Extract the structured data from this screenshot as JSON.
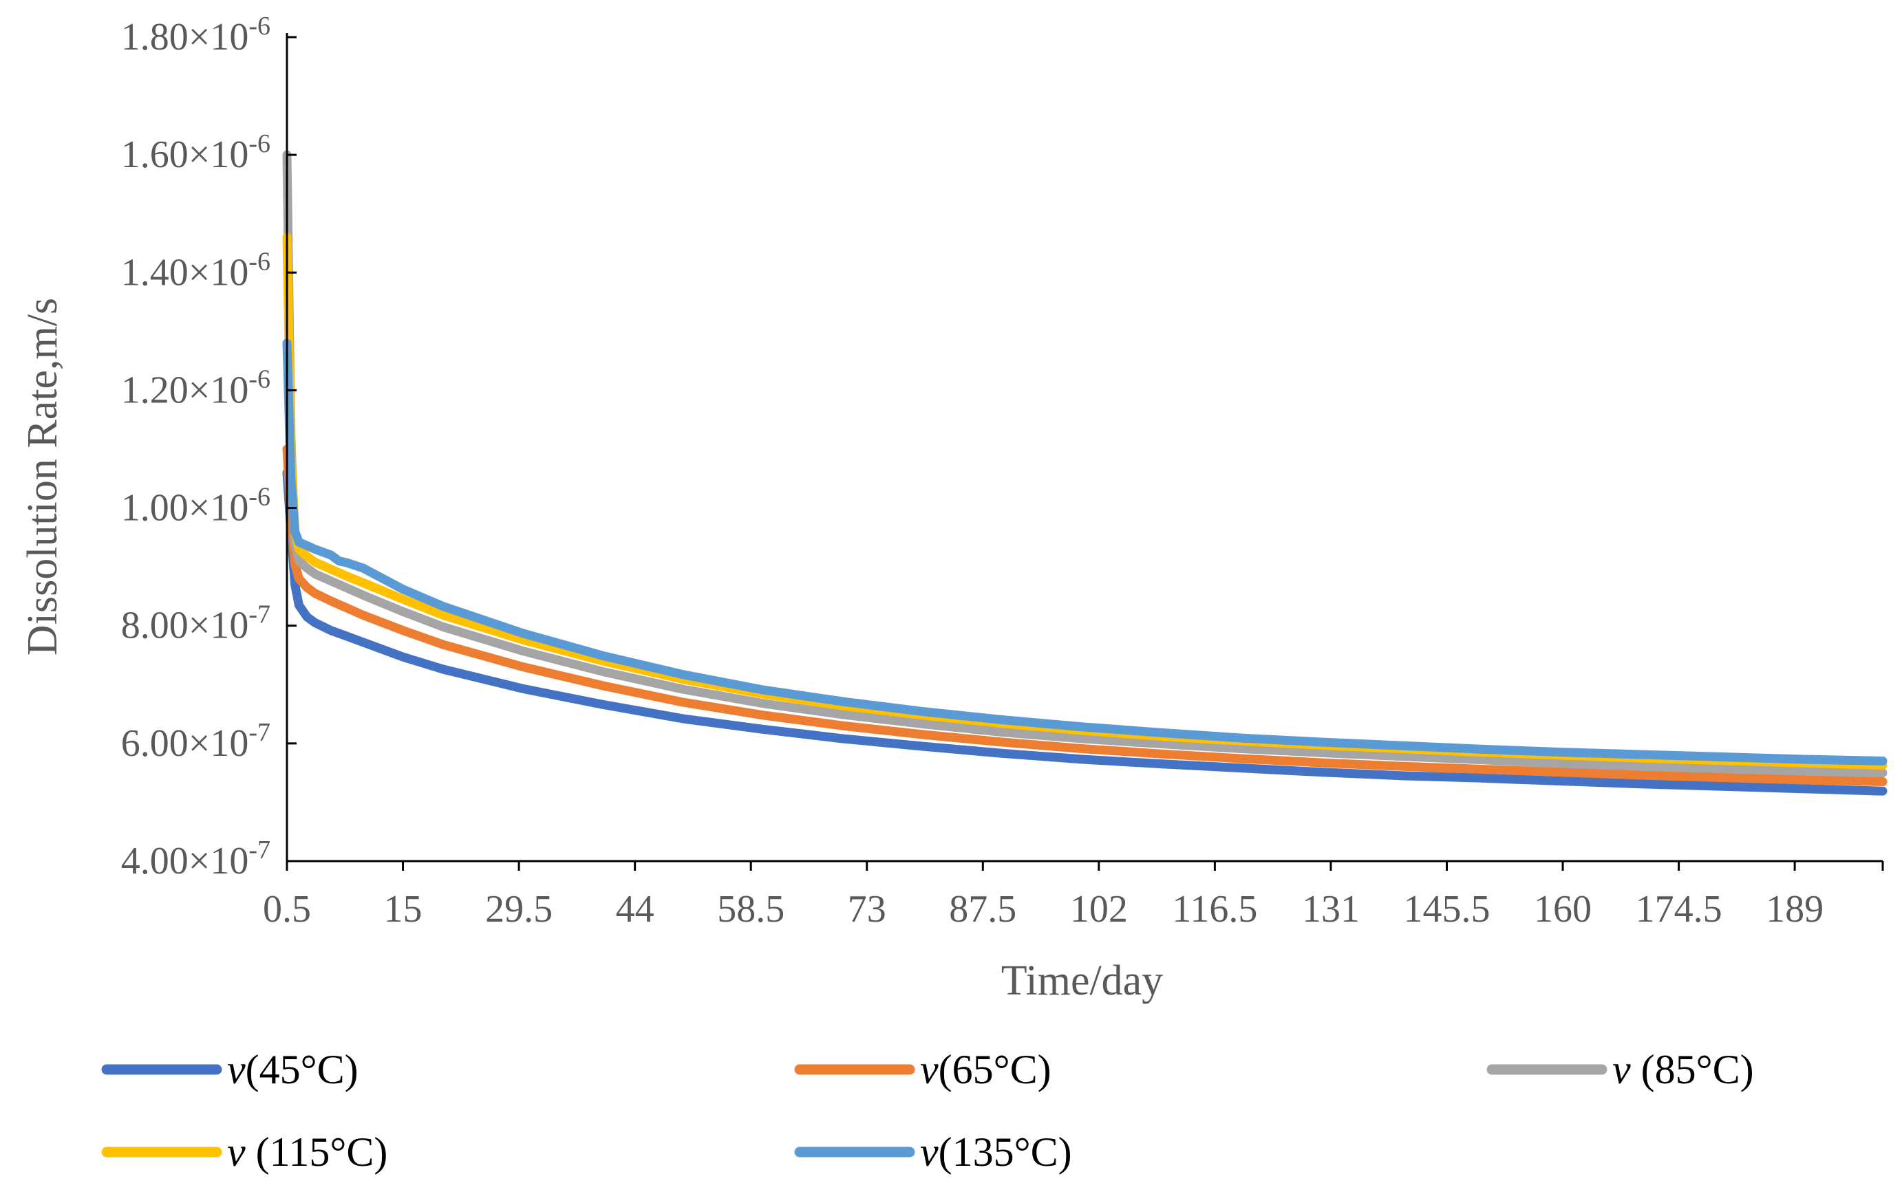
{
  "chart_data": {
    "type": "line",
    "title": "",
    "xlabel": "Time/day",
    "ylabel": "Dissolution Rate,m/s",
    "x_ticks": [
      "0.5",
      "15",
      "29.5",
      "44",
      "58.5",
      "73",
      "87.5",
      "102",
      "116.5",
      "131",
      "145.5",
      "160",
      "174.5",
      "189"
    ],
    "x_tick_values": [
      0.5,
      15,
      29.5,
      44,
      58.5,
      73,
      87.5,
      102,
      116.5,
      131,
      145.5,
      160,
      174.5,
      189
    ],
    "xlim": [
      0.5,
      200
    ],
    "y_ticks": [
      {
        "mantissa": "4.00",
        "exp": "-7",
        "value": 4e-07
      },
      {
        "mantissa": "6.00",
        "exp": "-7",
        "value": 6e-07
      },
      {
        "mantissa": "8.00",
        "exp": "-7",
        "value": 8e-07
      },
      {
        "mantissa": "1.00",
        "exp": "-6",
        "value": 1e-06
      },
      {
        "mantissa": "1.20",
        "exp": "-6",
        "value": 1.2e-06
      },
      {
        "mantissa": "1.40",
        "exp": "-6",
        "value": 1.4e-06
      },
      {
        "mantissa": "1.60",
        "exp": "-6",
        "value": 1.6e-06
      },
      {
        "mantissa": "1.80",
        "exp": "-6",
        "value": 1.8e-06
      }
    ],
    "y_tick_sep": "×10",
    "ylim": [
      4e-07,
      1.8e-06
    ],
    "grid": false,
    "legend_position": "bottom",
    "series": [
      {
        "name": "v(45°C)",
        "label_main": "v",
        "label_rest": "(45°C)",
        "color": "#4472C4",
        "x": [
          0.5,
          1,
          1.5,
          2,
          3,
          4,
          6,
          8,
          10,
          15,
          20,
          30,
          40,
          50,
          60,
          70,
          80,
          90,
          100,
          110,
          120,
          130,
          140,
          150,
          160,
          170,
          180,
          190,
          200
        ],
        "y": [
          1.06e-06,
          9.6e-07,
          8.7e-07,
          8.35e-07,
          8.15e-07,
          8.05e-07,
          7.92e-07,
          7.82e-07,
          7.72e-07,
          7.47e-07,
          7.26e-07,
          6.93e-07,
          6.66e-07,
          6.42e-07,
          6.24e-07,
          6.08e-07,
          5.95e-07,
          5.83e-07,
          5.73e-07,
          5.65e-07,
          5.58e-07,
          5.51e-07,
          5.45e-07,
          5.41e-07,
          5.36e-07,
          5.31e-07,
          5.27e-07,
          5.23e-07,
          5.19e-07
        ]
      },
      {
        "name": "v(65°C)",
        "label_main": "v",
        "label_rest": "(65°C)",
        "color": "#ED7D31",
        "x": [
          0.5,
          1,
          1.5,
          2,
          3,
          4,
          6,
          8,
          10,
          15,
          20,
          30,
          40,
          50,
          60,
          70,
          80,
          90,
          100,
          110,
          120,
          130,
          140,
          150,
          160,
          170,
          180,
          190,
          200
        ],
        "y": [
          1.1e-06,
          9.8e-07,
          9.05e-07,
          8.8e-07,
          8.65e-07,
          8.55e-07,
          8.42e-07,
          8.3e-07,
          8.18e-07,
          7.92e-07,
          7.68e-07,
          7.3e-07,
          6.98e-07,
          6.7e-07,
          6.48e-07,
          6.3e-07,
          6.15e-07,
          6.02e-07,
          5.91e-07,
          5.82e-07,
          5.74e-07,
          5.67e-07,
          5.61e-07,
          5.56e-07,
          5.51e-07,
          5.46e-07,
          5.42e-07,
          5.38e-07,
          5.35e-07
        ]
      },
      {
        "name": "v (85°C)",
        "label_main": "v",
        "label_rest": " (85°C)",
        "color": "#A5A5A5",
        "x": [
          0.5,
          1,
          1.5,
          2,
          3,
          4,
          6,
          8,
          10,
          15,
          20,
          30,
          40,
          50,
          60,
          70,
          80,
          90,
          100,
          110,
          120,
          130,
          140,
          150,
          160,
          170,
          180,
          190,
          200
        ],
        "y": [
          1.6e-06,
          1.12e-06,
          9.4e-07,
          9.1e-07,
          8.98e-07,
          8.88e-07,
          8.76e-07,
          8.64e-07,
          8.52e-07,
          8.24e-07,
          7.98e-07,
          7.57e-07,
          7.22e-07,
          6.92e-07,
          6.68e-07,
          6.49e-07,
          6.33e-07,
          6.19e-07,
          6.08e-07,
          5.99e-07,
          5.91e-07,
          5.84e-07,
          5.78e-07,
          5.72e-07,
          5.66e-07,
          5.61e-07,
          5.57e-07,
          5.53e-07,
          5.5e-07
        ]
      },
      {
        "name": "v (115°C)",
        "label_main": "v",
        "label_rest": " (115°C)",
        "color": "#FFC000",
        "x": [
          0.5,
          1,
          1.5,
          2,
          3,
          4,
          6,
          8,
          10,
          15,
          20,
          30,
          40,
          50,
          60,
          70,
          80,
          90,
          100,
          110,
          120,
          130,
          140,
          150,
          160,
          170,
          180,
          190,
          200
        ],
        "y": [
          1.46e-06,
          1.1e-06,
          9.6e-07,
          9.3e-07,
          9.18e-07,
          9.08e-07,
          8.96e-07,
          8.84e-07,
          8.73e-07,
          8.45e-07,
          8.18e-07,
          7.76e-07,
          7.4e-07,
          7.09e-07,
          6.84e-07,
          6.64e-07,
          6.48e-07,
          6.34e-07,
          6.22e-07,
          6.12e-07,
          6.04e-07,
          5.97e-07,
          5.91e-07,
          5.85e-07,
          5.8e-07,
          5.75e-07,
          5.71e-07,
          5.67e-07,
          5.63e-07
        ]
      },
      {
        "name": "v(135°C)",
        "label_main": "v",
        "label_rest": "(135°C)",
        "color": "#5B9BD5",
        "x": [
          0.5,
          1,
          1.5,
          2,
          3,
          4,
          6,
          7,
          8,
          10,
          15,
          20,
          30,
          40,
          50,
          60,
          70,
          80,
          90,
          100,
          110,
          120,
          130,
          140,
          150,
          160,
          170,
          180,
          190,
          200
        ],
        "y": [
          1.28e-06,
          1.05e-06,
          9.6e-07,
          9.42e-07,
          9.36e-07,
          9.3e-07,
          9.2e-07,
          9.1e-07,
          9.07e-07,
          8.98e-07,
          8.62e-07,
          8.33e-07,
          7.87e-07,
          7.49e-07,
          7.17e-07,
          6.91e-07,
          6.71e-07,
          6.54e-07,
          6.4e-07,
          6.28e-07,
          6.18e-07,
          6.09e-07,
          6.02e-07,
          5.96e-07,
          5.9e-07,
          5.85e-07,
          5.81e-07,
          5.77e-07,
          5.73e-07,
          5.7e-07
        ]
      }
    ]
  }
}
